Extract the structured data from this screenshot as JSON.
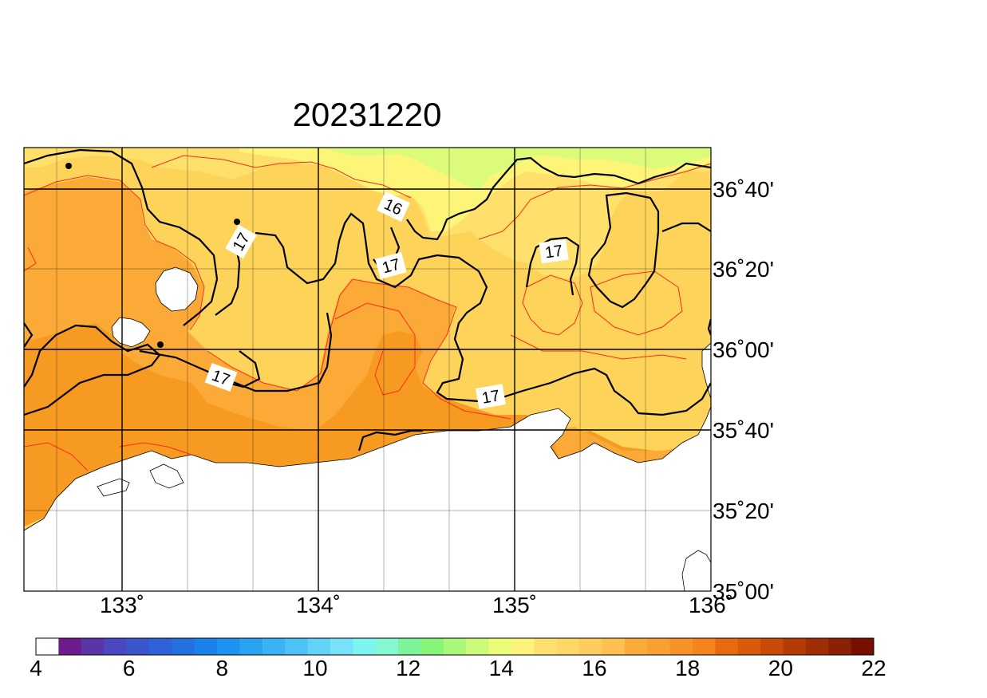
{
  "title": "20231220",
  "map": {
    "lon_ticks": [
      {
        "value": 133,
        "label": "133˚"
      },
      {
        "value": 134,
        "label": "134˚"
      },
      {
        "value": 135,
        "label": "135˚"
      },
      {
        "value": 136,
        "label": "136˚"
      }
    ],
    "lat_ticks": [
      {
        "value": 36.6667,
        "label": "36˚40'"
      },
      {
        "value": 36.3333,
        "label": "36˚20'"
      },
      {
        "value": 36.0,
        "label": "36˚00'"
      },
      {
        "value": 35.6667,
        "label": "35˚40'"
      },
      {
        "value": 35.3333,
        "label": "35˚20'"
      },
      {
        "value": 35.0,
        "label": "35˚00'"
      }
    ],
    "contour_labels": [
      "16",
      "17",
      "17",
      "17",
      "17",
      "17"
    ],
    "colors": {
      "water_16_17": "#fee06a",
      "water_17_18": "#fdd35a",
      "water_18_19": "#fba937",
      "water_19_20": "#f79a22",
      "water_15_16": "#fdf578",
      "water_14_15": "#dcfb7a",
      "land": "#ffffff",
      "contour_line": "#000000",
      "minor_contour": "#ff2a1a"
    }
  },
  "colorbar": {
    "labels": [
      "4",
      "6",
      "8",
      "10",
      "12",
      "14",
      "16",
      "18",
      "20",
      "22"
    ],
    "colors": [
      "#ffffff",
      "#6d1a8c",
      "#5a35a8",
      "#4a47c0",
      "#3b55cc",
      "#2f62d8",
      "#2470e0",
      "#1a80ea",
      "#1d92f0",
      "#2aa2f2",
      "#3ab2f4",
      "#4dc2f6",
      "#62d2f8",
      "#78e2fa",
      "#7cf4f0",
      "#84f8d0",
      "#7df49a",
      "#88f47a",
      "#aaf87a",
      "#ccfa7a",
      "#eafc78",
      "#fdf27a",
      "#fde070",
      "#fdd866",
      "#fdcc5c",
      "#fdc052",
      "#fbab3a",
      "#f9a030",
      "#f79226",
      "#f5841c",
      "#e86a10",
      "#d85a0a",
      "#c84a06",
      "#b43c04",
      "#a02e04",
      "#8c2002",
      "#780e00"
    ]
  }
}
